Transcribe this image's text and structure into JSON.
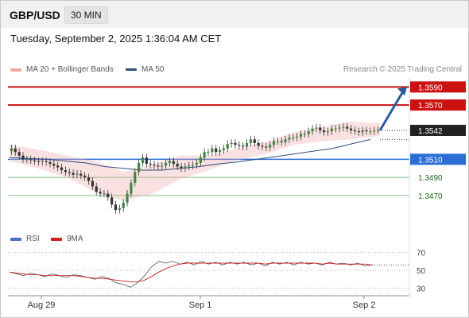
{
  "header": {
    "symbol": "GBP/USD",
    "timeframe": "30 MIN"
  },
  "datetime": "Tuesday, September 2, 2025 1:36:04 AM CET",
  "legend": {
    "ma20": "MA 20 + Bollinger Bands",
    "ma50": "MA 50",
    "credit": "Research © 2025 Trading Central",
    "rsi": "RSI",
    "ma9": "9MA"
  },
  "colors": {
    "ma20_band": "#f0a8a8",
    "ma50": "#2d4f7c",
    "resistance": "#cc1111",
    "support_blue": "#2b6fd6",
    "support_green": "#7fbf7f",
    "arrow": "#2b5aa0",
    "candle_up": "#3c8a3c",
    "candle_down": "#333333",
    "rsi": "#4b72c9",
    "ma9": "#cc2222"
  },
  "chart_data": [
    {
      "type": "candlestick",
      "title": "GBP/USD 30 MIN",
      "x_ticks": [
        "Aug 29",
        "Sep 1",
        "Sep 2"
      ],
      "ylim": [
        1.344,
        1.36
      ],
      "levels": [
        {
          "value": 1.359,
          "label": "1.3590",
          "kind": "resistance"
        },
        {
          "value": 1.357,
          "label": "1.3570",
          "kind": "resistance"
        },
        {
          "value": 1.3542,
          "label": "1.3542",
          "kind": "last_price"
        },
        {
          "value": 1.351,
          "label": "1.3510",
          "kind": "pivot"
        },
        {
          "value": 1.349,
          "label": "1.3490",
          "kind": "support"
        },
        {
          "value": 1.347,
          "label": "1.3470",
          "kind": "support"
        }
      ],
      "close_series": [
        1.3522,
        1.3518,
        1.3514,
        1.351,
        1.351,
        1.3509,
        1.3508,
        1.3507,
        1.3508,
        1.3507,
        1.3505,
        1.3503,
        1.3501,
        1.3498,
        1.3496,
        1.3495,
        1.3493,
        1.3494,
        1.3492,
        1.349,
        1.3486,
        1.348,
        1.3474,
        1.3472,
        1.3472,
        1.3468,
        1.346,
        1.3454,
        1.3456,
        1.3462,
        1.3472,
        1.3484,
        1.3496,
        1.3506,
        1.3512,
        1.3505,
        1.3504,
        1.3503,
        1.3502,
        1.3503,
        1.3506,
        1.3508,
        1.3505,
        1.3502,
        1.35,
        1.3502,
        1.3503,
        1.3504,
        1.3506,
        1.3512,
        1.3518,
        1.3518,
        1.3522,
        1.3518,
        1.352,
        1.3522,
        1.3527,
        1.3528,
        1.3526,
        1.3525,
        1.3524,
        1.3528,
        1.3532,
        1.3528,
        1.3525,
        1.3524,
        1.3523,
        1.3526,
        1.353,
        1.353,
        1.3529,
        1.3532,
        1.3534,
        1.3534,
        1.3535,
        1.3538,
        1.3538,
        1.3541,
        1.3544,
        1.3545,
        1.3542,
        1.354,
        1.3541,
        1.3544,
        1.3544,
        1.3545,
        1.3546,
        1.3544,
        1.3542,
        1.3541,
        1.354,
        1.3542,
        1.3541,
        1.3541,
        1.3542,
        1.3542
      ],
      "ma50": [
        1.3512,
        1.3511,
        1.351,
        1.3508,
        1.3506,
        1.3502,
        1.35,
        1.3498,
        1.3498,
        1.35,
        1.3502,
        1.3505,
        1.3507,
        1.351,
        1.3513,
        1.3516,
        1.3519,
        1.3522,
        1.3527,
        1.3532
      ],
      "ma20_upper": [
        1.3526,
        1.3521,
        1.3514,
        1.3508,
        1.3496,
        1.3504,
        1.3514,
        1.3514,
        1.3522,
        1.3529,
        1.354,
        1.3546,
        1.3552,
        1.355
      ],
      "ma20_lower": [
        1.3508,
        1.35,
        1.349,
        1.3474,
        1.3464,
        1.3472,
        1.3488,
        1.3498,
        1.3509,
        1.3516,
        1.3526,
        1.353,
        1.3532,
        1.3536
      ],
      "projection": {
        "from": 1.3542,
        "to": 1.359
      }
    },
    {
      "type": "line",
      "title": "RSI",
      "ylim": [
        25,
        75
      ],
      "y_ticks": [
        "70",
        "50",
        "30"
      ],
      "series": [
        {
          "name": "RSI",
          "values": [
            48,
            46,
            44,
            47,
            45,
            43,
            46,
            44,
            42,
            45,
            44,
            42,
            40,
            43,
            41,
            36,
            34,
            31,
            36,
            44,
            54,
            60,
            58,
            60,
            57,
            59,
            56,
            60,
            57,
            59,
            56,
            59,
            57,
            59,
            56,
            58,
            55,
            59,
            57,
            59,
            56,
            59,
            57,
            58,
            56,
            59,
            57,
            58,
            56,
            58,
            55,
            56
          ]
        },
        {
          "name": "9MA",
          "values": [
            48,
            47,
            46,
            45,
            45,
            44,
            44,
            44,
            44,
            44,
            43,
            42,
            41,
            41,
            40,
            39,
            38,
            37,
            37,
            39,
            43,
            48,
            52,
            55,
            57,
            58,
            58,
            58,
            58,
            58,
            58,
            58,
            58,
            58,
            58,
            58,
            57,
            58,
            58,
            58,
            58,
            58,
            58,
            58,
            57,
            58,
            57,
            57,
            57,
            57,
            57,
            56
          ]
        }
      ]
    }
  ]
}
